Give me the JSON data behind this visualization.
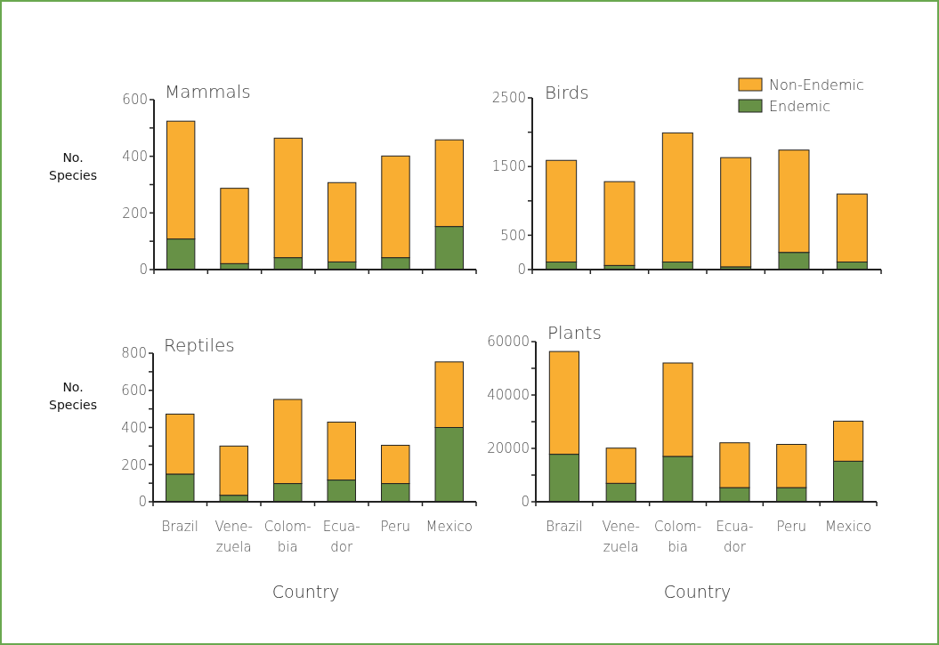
{
  "chart_data": [
    {
      "type": "bar",
      "title": "Mammals",
      "ylabel": "No. Species",
      "stacked": true,
      "categories": [
        null,
        null,
        null,
        null,
        null,
        null
      ],
      "ylim": [
        0,
        600
      ],
      "yticks": [
        0,
        {
          "value": 100,
          "label": null
        },
        200,
        {
          "value": 300,
          "label": null
        },
        400,
        {
          "value": 500,
          "label": null
        },
        600
      ],
      "series": [
        {
          "color": "#679146",
          "values": [
            108,
            21,
            42,
            27,
            42,
            152
          ]
        },
        {
          "color": "#f9ae32",
          "values": [
            416,
            266,
            422,
            280,
            359,
            306
          ]
        }
      ]
    },
    {
      "type": "bar",
      "title": "Birds",
      "stacked": true,
      "legend": "top right",
      "categories": [
        null,
        null,
        null,
        null,
        null,
        null
      ],
      "ylim": [
        0,
        2500
      ],
      "yticks": [
        0,
        500,
        {
          "value": 1000,
          "label": null
        },
        1500,
        {
          "value": 2000,
          "label": null
        },
        2500
      ],
      "series": [
        {
          "name": "Endemic",
          "color": "#679146",
          "values": [
            110,
            60,
            110,
            40,
            250,
            110
          ]
        },
        {
          "name": "Non-Endemic",
          "color": "#f9ae32",
          "values": [
            1480,
            1220,
            1880,
            1590,
            1490,
            990
          ]
        }
      ]
    },
    {
      "type": "bar",
      "title": "Reptiles",
      "ylabel": "No. Species",
      "xlabel": "Country",
      "stacked": true,
      "categories": [
        "Brazil",
        "Vene-\nzuela",
        "Colom-\nbia",
        "Ecua-\ndor",
        "Peru",
        "Mexico"
      ],
      "ylim": [
        0,
        800
      ],
      "yticks": [
        0,
        {
          "value": 100,
          "label": null
        },
        200,
        {
          "value": 300,
          "label": null
        },
        400,
        {
          "value": 500,
          "label": null
        },
        600,
        {
          "value": 700,
          "label": null
        },
        800
      ],
      "series": [
        {
          "color": "#679146",
          "values": [
            149,
            35,
            98,
            117,
            98,
            400
          ]
        },
        {
          "color": "#f9ae32",
          "values": [
            323,
            265,
            453,
            312,
            206,
            353
          ]
        }
      ]
    },
    {
      "type": "bar",
      "title": "Plants",
      "xlabel": "Country",
      "stacked": true,
      "categories": [
        "Brazil",
        "Vene-\nzuela",
        "Colom-\nbia",
        "Ecua-\ndor",
        "Peru",
        "Mexico"
      ],
      "ylim": [
        0,
        60000
      ],
      "yticks": [
        0,
        {
          "value": 10000,
          "label": null
        },
        20000,
        {
          "value": 30000,
          "label": null
        },
        40000,
        {
          "value": 50000,
          "label": null
        },
        60000
      ],
      "series": [
        {
          "color": "#679146",
          "values": [
            17800,
            6900,
            17000,
            5300,
            5300,
            15200
          ]
        },
        {
          "color": "#f9ae32",
          "values": [
            38500,
            13200,
            35000,
            16800,
            16200,
            15000
          ]
        }
      ]
    }
  ]
}
